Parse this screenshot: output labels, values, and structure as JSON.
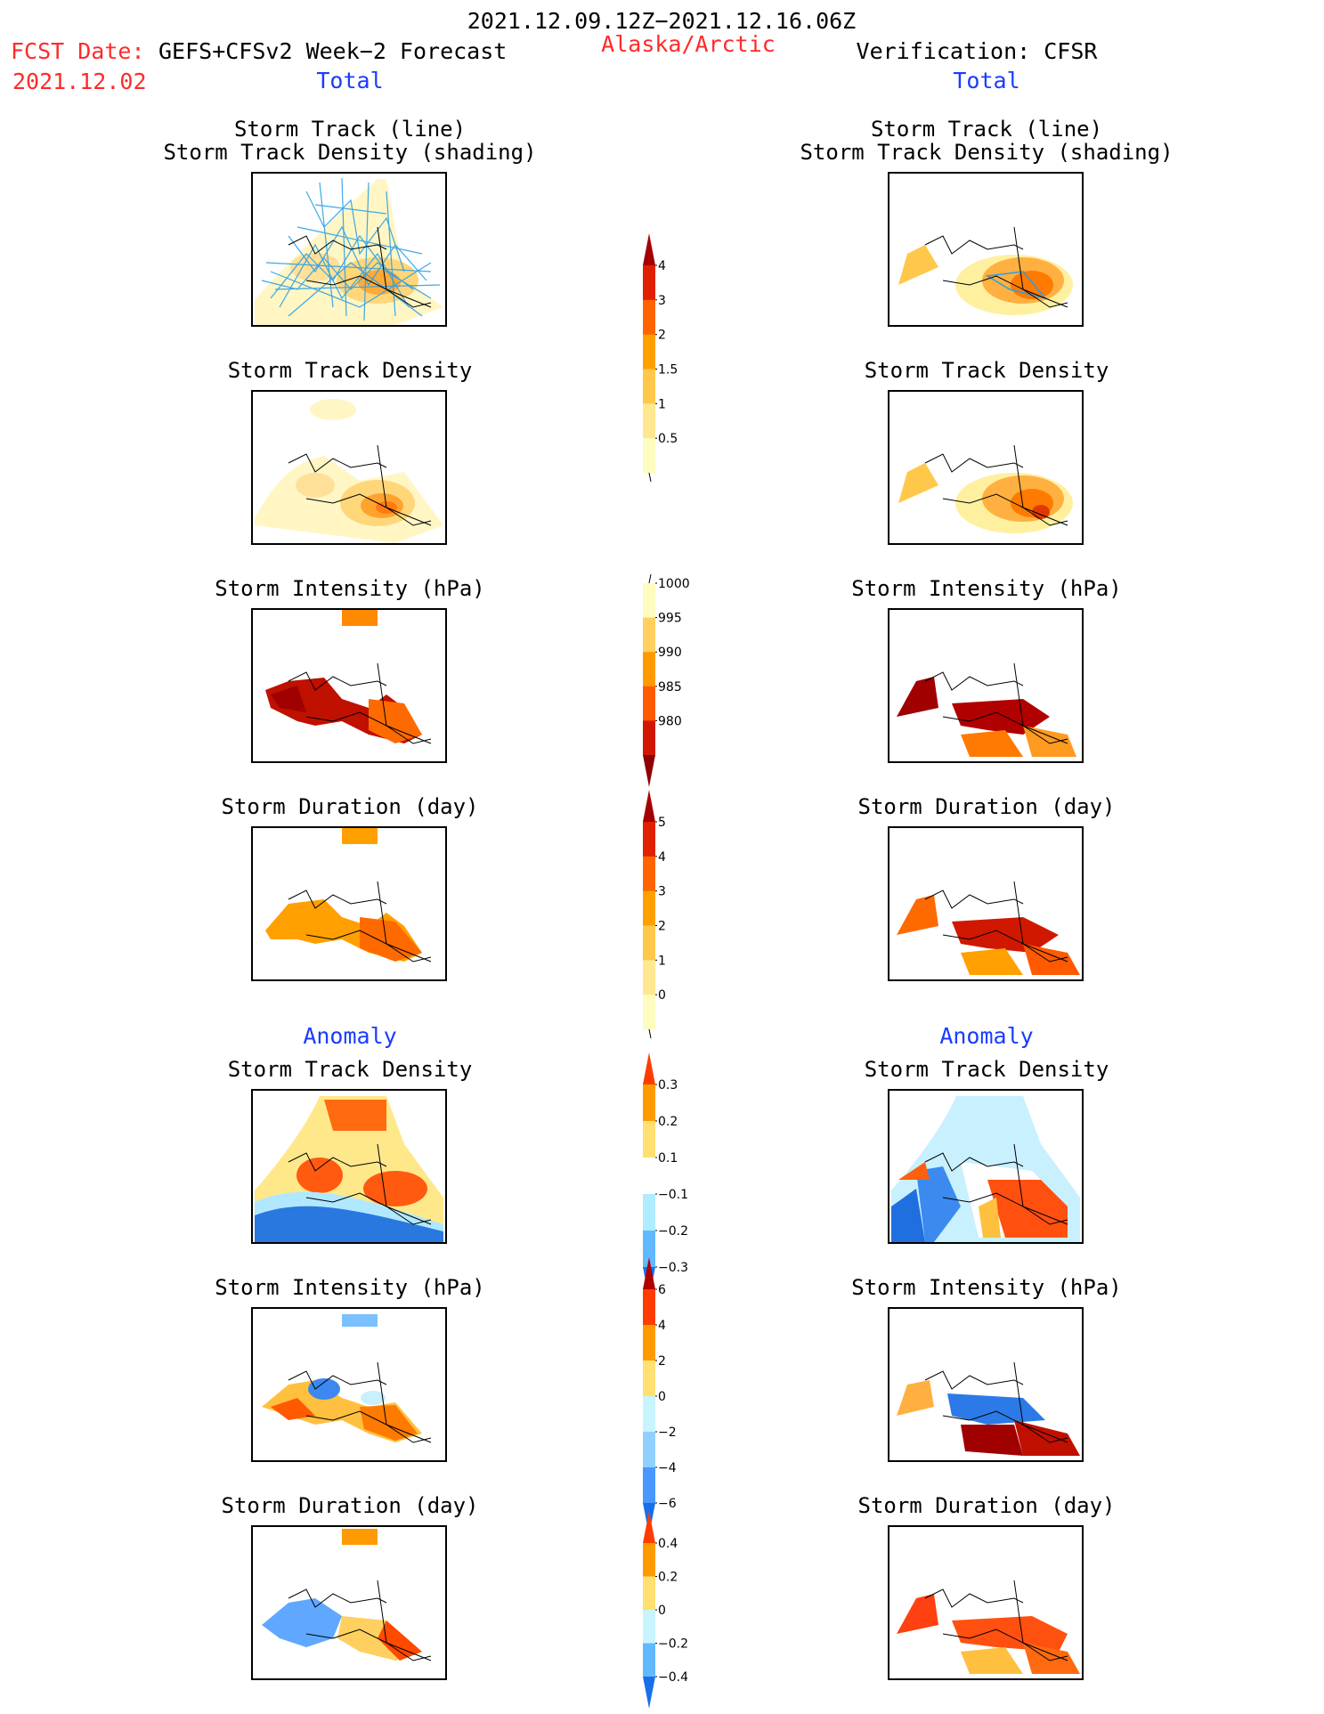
{
  "header": {
    "date_range": "2021.12.09.12Z−2021.12.16.06Z",
    "fcst_date_label": "FCST Date:",
    "forecast_name": "GEFS+CFSv2 Week−2 Forecast",
    "fcst_date_value": "2021.12.02",
    "region": "Alaska/Arctic",
    "verification": "Verification: CFSR"
  },
  "left_column": {
    "total_label": "Total",
    "anomaly_label": "Anomaly",
    "panels": [
      {
        "title_line1": "Storm Track (line)",
        "title_line2": "Storm Track Density (shading)"
      },
      {
        "title_line1": "Storm Track Density",
        "title_line2": ""
      },
      {
        "title_line1": "Storm Intensity (hPa)",
        "title_line2": ""
      },
      {
        "title_line1": "Storm Duration (day)",
        "title_line2": ""
      },
      {
        "title_line1": "Storm Track Density",
        "title_line2": ""
      },
      {
        "title_line1": "Storm Intensity (hPa)",
        "title_line2": ""
      },
      {
        "title_line1": "Storm Duration (day)",
        "title_line2": ""
      }
    ]
  },
  "right_column": {
    "total_label": "Total",
    "anomaly_label": "Anomaly",
    "panels": [
      {
        "title_line1": "Storm Track (line)",
        "title_line2": "Storm Track Density (shading)"
      },
      {
        "title_line1": "Storm Track Density",
        "title_line2": ""
      },
      {
        "title_line1": "Storm Intensity (hPa)",
        "title_line2": ""
      },
      {
        "title_line1": "Storm Duration (day)",
        "title_line2": ""
      },
      {
        "title_line1": "Storm Track Density",
        "title_line2": ""
      },
      {
        "title_line1": "Storm Intensity (hPa)",
        "title_line2": ""
      },
      {
        "title_line1": "Storm Duration (day)",
        "title_line2": ""
      }
    ]
  },
  "colorbars": [
    {
      "name": "track-density",
      "labels": [
        "4",
        "3",
        "2",
        "1.5",
        "1",
        "0.5"
      ],
      "colors": [
        "#a50000",
        "#e02000",
        "#ff6400",
        "#ffa000",
        "#ffc84a",
        "#ffe890",
        "#fffcc0"
      ]
    },
    {
      "name": "intensity",
      "labels": [
        "1000",
        "995",
        "990",
        "985",
        "980"
      ],
      "colors": [
        "#fffcc0",
        "#ffd060",
        "#ff9a00",
        "#ff5a00",
        "#d01800",
        "#900000"
      ]
    },
    {
      "name": "duration",
      "labels": [
        "5",
        "4",
        "3",
        "2",
        "1",
        "0"
      ],
      "colors": [
        "#a50000",
        "#e02000",
        "#ff6400",
        "#ffa000",
        "#ffc84a",
        "#ffe890",
        "#fffcc0"
      ]
    },
    {
      "name": "density-anomaly",
      "labels": [
        "0.3",
        "0.2",
        "0.1",
        "−0.1",
        "−0.2",
        "−0.3"
      ],
      "colors": [
        "#ff3c00",
        "#ff9a00",
        "#ffe070",
        "#ffffff",
        "#b0ecff",
        "#60b8ff",
        "#1870e8"
      ]
    },
    {
      "name": "intensity-anomaly",
      "labels": [
        "6",
        "4",
        "2",
        "0",
        "−2",
        "−4",
        "−6"
      ],
      "colors": [
        "#b00000",
        "#ff3c00",
        "#ff9a00",
        "#ffe070",
        "#c8f4ff",
        "#90d0ff",
        "#4898ff",
        "#1870e8"
      ]
    },
    {
      "name": "duration-anomaly",
      "labels": [
        "0.4",
        "0.2",
        "0",
        "−0.2",
        "−0.4"
      ],
      "colors": [
        "#ff3c00",
        "#ff9a00",
        "#ffe070",
        "#c8f4ff",
        "#60b8ff",
        "#1870e8"
      ]
    }
  ]
}
